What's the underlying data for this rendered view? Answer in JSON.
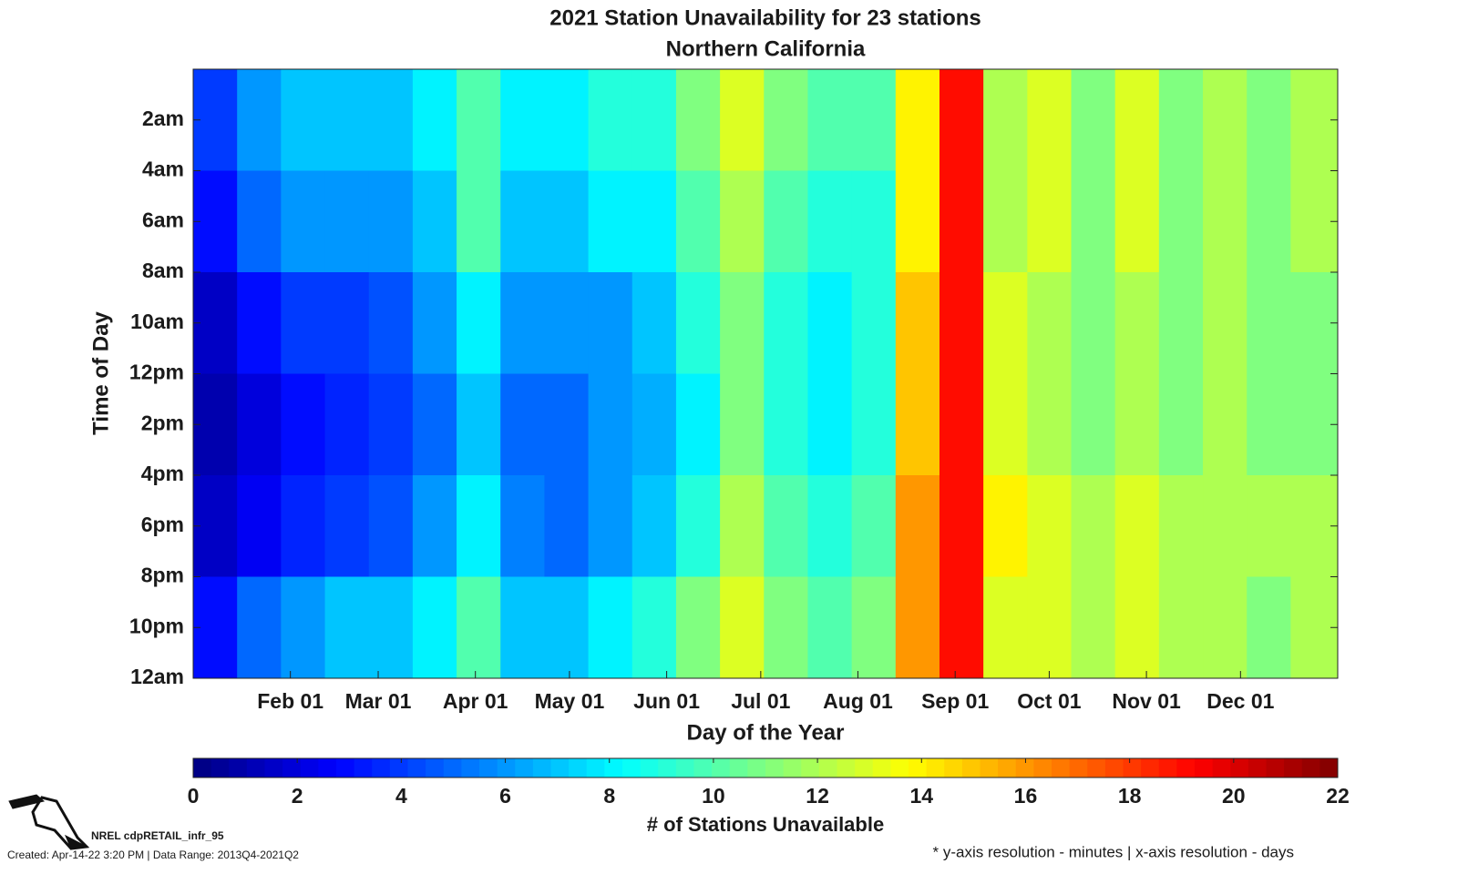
{
  "chart_data": {
    "type": "heatmap",
    "title": "2021 Station Unavailability for 23 stations",
    "subtitle": "Northern California",
    "xlabel": "Day of the Year",
    "ylabel": "Time of Day",
    "colorbar_label": "# of Stations Unavailable",
    "colormap": "jet",
    "xlim": [
      1,
      366
    ],
    "xticks": [
      {
        "value": 32,
        "label": "Feb 01"
      },
      {
        "value": 60,
        "label": "Mar 01"
      },
      {
        "value": 91,
        "label": "Apr 01"
      },
      {
        "value": 121,
        "label": "May 01"
      },
      {
        "value": 152,
        "label": "Jun 01"
      },
      {
        "value": 182,
        "label": "Jul 01"
      },
      {
        "value": 213,
        "label": "Aug 01"
      },
      {
        "value": 244,
        "label": "Sep 01"
      },
      {
        "value": 274,
        "label": "Oct 01"
      },
      {
        "value": 305,
        "label": "Nov 01"
      },
      {
        "value": 335,
        "label": "Dec 01"
      }
    ],
    "ylim": [
      0,
      1440
    ],
    "y_reversed": true,
    "yticks": [
      {
        "value": 120,
        "label": "2am"
      },
      {
        "value": 240,
        "label": "4am"
      },
      {
        "value": 360,
        "label": "6am"
      },
      {
        "value": 480,
        "label": "8am"
      },
      {
        "value": 600,
        "label": "10am"
      },
      {
        "value": 720,
        "label": "12pm"
      },
      {
        "value": 840,
        "label": "2pm"
      },
      {
        "value": 960,
        "label": "4pm"
      },
      {
        "value": 1080,
        "label": "6pm"
      },
      {
        "value": 1200,
        "label": "8pm"
      },
      {
        "value": 1320,
        "label": "10pm"
      },
      {
        "value": 1440,
        "label": "12am"
      }
    ],
    "clim": [
      0,
      22
    ],
    "cticks": [
      0,
      2,
      4,
      6,
      8,
      10,
      12,
      14,
      16,
      18,
      20,
      22
    ],
    "xbins": [
      1,
      15,
      29,
      43,
      57,
      71,
      85,
      99,
      113,
      127,
      141,
      155,
      169,
      183,
      197,
      211,
      225,
      239,
      253,
      267,
      281,
      295,
      309,
      323,
      337,
      351,
      366
    ],
    "ybins": [
      0,
      240,
      480,
      720,
      960,
      1200,
      1440
    ],
    "values": [
      [
        4,
        6,
        7,
        7,
        7,
        8,
        10,
        8,
        8,
        9,
        9,
        11,
        13,
        11,
        10,
        10,
        14,
        19,
        12,
        13,
        11,
        13,
        11,
        12,
        11,
        12
      ],
      [
        3,
        5,
        6,
        6,
        6,
        7,
        10,
        7,
        7,
        8,
        8,
        10,
        12,
        10,
        9,
        9,
        14,
        19,
        12,
        13,
        11,
        13,
        11,
        12,
        11,
        12
      ],
      [
        1.5,
        3,
        4,
        4,
        4.5,
        6,
        8,
        6,
        6,
        6,
        7,
        9,
        11,
        9,
        8,
        9,
        15,
        19,
        13,
        12,
        11,
        12,
        11,
        12,
        11,
        11
      ],
      [
        1,
        2,
        3,
        3.5,
        4,
        5,
        7,
        5,
        5,
        6,
        6.5,
        8,
        11,
        9,
        8,
        9,
        15,
        19,
        13,
        12,
        11,
        12,
        11,
        12,
        11,
        11
      ],
      [
        1.5,
        2.5,
        3.5,
        4,
        4.5,
        6,
        8,
        5.5,
        5,
        6,
        7,
        9,
        12,
        10,
        9,
        10,
        16,
        19,
        14,
        13,
        12,
        13,
        12,
        12,
        12,
        12
      ],
      [
        3,
        5,
        6,
        7,
        7,
        8,
        10,
        7,
        7,
        8,
        9,
        11,
        13,
        11,
        10,
        11,
        16,
        19,
        13,
        13,
        12,
        13,
        12,
        12,
        11,
        12
      ]
    ]
  },
  "footer": {
    "source": "NREL cdpRETAIL_infr_95",
    "created": "Created: Apr-14-22  3:20 PM | Data Range: 2013Q4-2021Q2",
    "resolution": "* y-axis resolution - minutes | x-axis resolution - days"
  }
}
